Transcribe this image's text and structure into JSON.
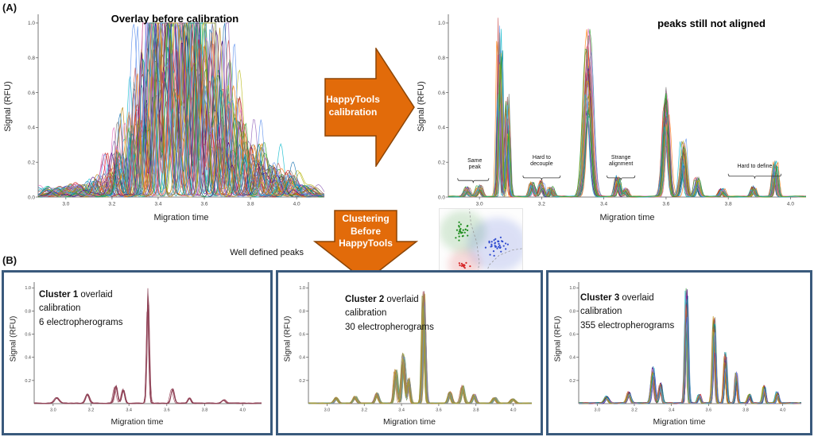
{
  "figure": {
    "panel_a_label": "(A)",
    "panel_b_label": "(B)",
    "well_defined_peaks_label": "Well defined peaks",
    "arrow_right": {
      "line1": "HappyTools",
      "line2": "calibration"
    },
    "arrow_down": {
      "line1": "Clustering",
      "line2": "Before",
      "line3": "HappyTools"
    },
    "colors": {
      "arrow_fill": "#E26B0A",
      "arrow_stroke": "#8C4506",
      "box_border": "#3A5A7C",
      "axis": "#555555"
    },
    "palette": [
      "#1f77b4",
      "#ff7f0e",
      "#d62728",
      "#9467bd",
      "#8c564b",
      "#e377c2",
      "#7f7f7f",
      "#bcbd22",
      "#17becf",
      "#2ca02c",
      "#4b0082",
      "#008b8b",
      "#b8860b",
      "#cd5c5c",
      "#6495ed"
    ]
  },
  "chart_data": [
    {
      "id": "before",
      "type": "line",
      "title": "Overlay before calibration",
      "xlabel": "Migration time",
      "ylabel": "Signal (RFU)",
      "xlim": [
        2.88,
        4.12
      ],
      "ylim": [
        0,
        1.05
      ],
      "xticks": [
        3.0,
        3.2,
        3.4,
        3.6,
        3.8,
        4.0
      ],
      "yticks": [
        0,
        0.2,
        0.4,
        0.6,
        0.8,
        1.0
      ],
      "n_traces": 45,
      "seed": 7,
      "shift": 0.035,
      "peak_jitter": 0.045,
      "hmin": 0.35,
      "clip": 1.0,
      "noise": 0.018,
      "colors": "palette",
      "peaks": [
        {
          "x": 2.95,
          "h": 0.05,
          "w": 0.02
        },
        {
          "x": 3.05,
          "h": 0.07,
          "w": 0.02
        },
        {
          "x": 3.15,
          "h": 0.12,
          "w": 0.015
        },
        {
          "x": 3.22,
          "h": 0.28,
          "w": 0.012
        },
        {
          "x": 3.28,
          "h": 0.5,
          "w": 0.01
        },
        {
          "x": 3.35,
          "h": 0.9,
          "w": 0.012
        },
        {
          "x": 3.4,
          "h": 1.3,
          "w": 0.013
        },
        {
          "x": 3.45,
          "h": 1.3,
          "w": 0.013
        },
        {
          "x": 3.5,
          "h": 1.3,
          "w": 0.013
        },
        {
          "x": 3.55,
          "h": 1.2,
          "w": 0.013
        },
        {
          "x": 3.6,
          "h": 1.0,
          "w": 0.013
        },
        {
          "x": 3.65,
          "h": 0.75,
          "w": 0.012
        },
        {
          "x": 3.7,
          "h": 0.55,
          "w": 0.012
        },
        {
          "x": 3.76,
          "h": 0.45,
          "w": 0.012
        },
        {
          "x": 3.82,
          "h": 0.3,
          "w": 0.013
        },
        {
          "x": 3.88,
          "h": 0.2,
          "w": 0.014
        },
        {
          "x": 3.95,
          "h": 0.14,
          "w": 0.015
        },
        {
          "x": 4.02,
          "h": 0.07,
          "w": 0.02
        }
      ]
    },
    {
      "id": "after",
      "type": "line",
      "title": "peaks still not aligned",
      "xlabel": "Migration time",
      "ylabel": "Signal (RFU)",
      "xlim": [
        2.9,
        4.05
      ],
      "ylim": [
        0,
        1.05
      ],
      "xticks": [
        3.0,
        3.2,
        3.4,
        3.6,
        3.8,
        4.0
      ],
      "yticks": [
        0,
        0.2,
        0.4,
        0.6,
        0.8,
        1.0
      ],
      "n_traces": 40,
      "seed": 11,
      "shift": 0.005,
      "peak_jitter": 0.004,
      "hmin": 0.45,
      "clip": 1.03,
      "noise": 0.006,
      "colors": "palette",
      "peaks": [
        {
          "x": 2.96,
          "h": 0.06,
          "w": 0.006
        },
        {
          "x": 3.0,
          "h": 0.07,
          "w": 0.006
        },
        {
          "x": 3.065,
          "h": 1.05,
          "w": 0.0045
        },
        {
          "x": 3.09,
          "h": 0.6,
          "w": 0.0045
        },
        {
          "x": 3.17,
          "h": 0.09,
          "w": 0.006
        },
        {
          "x": 3.2,
          "h": 0.1,
          "w": 0.006
        },
        {
          "x": 3.23,
          "h": 0.06,
          "w": 0.005
        },
        {
          "x": 3.35,
          "h": 0.98,
          "w": 0.011
        },
        {
          "x": 3.445,
          "h": 0.12,
          "w": 0.005
        },
        {
          "x": 3.47,
          "h": 0.05,
          "w": 0.005
        },
        {
          "x": 3.6,
          "h": 0.64,
          "w": 0.008
        },
        {
          "x": 3.655,
          "h": 0.35,
          "w": 0.007
        },
        {
          "x": 3.7,
          "h": 0.12,
          "w": 0.006
        },
        {
          "x": 3.78,
          "h": 0.05,
          "w": 0.006
        },
        {
          "x": 3.88,
          "h": 0.06,
          "w": 0.005
        },
        {
          "x": 3.95,
          "h": 0.22,
          "w": 0.005
        }
      ],
      "annotations": [
        {
          "lines": [
            "Same",
            "peak"
          ],
          "x": 2.985,
          "text_y": 0.2,
          "brace_y": 0.095,
          "span": [
            2.93,
            3.03
          ]
        },
        {
          "lines": [
            "Hard to",
            "decouple"
          ],
          "x": 3.2,
          "text_y": 0.22,
          "brace_y": 0.11,
          "span": [
            3.14,
            3.26
          ]
        },
        {
          "lines": [
            "Strange",
            "alignment"
          ],
          "x": 3.455,
          "text_y": 0.22,
          "brace_y": 0.11,
          "span": [
            3.41,
            3.5
          ]
        },
        {
          "lines": [
            "Hard to define"
          ],
          "x": 3.885,
          "text_y": 0.17,
          "brace_y": 0.12,
          "span": [
            3.8,
            3.97
          ]
        }
      ]
    },
    {
      "id": "c1",
      "type": "line",
      "label_bold": "Cluster 1",
      "label_rest": " overlaid",
      "label_line2": "calibration",
      "label_line3": "6 electropherograms",
      "xlabel": "Migration time",
      "ylabel": "Signal (RFU)",
      "xlim": [
        2.9,
        4.1
      ],
      "ylim": [
        0,
        1.05
      ],
      "xticks": [
        3.0,
        3.2,
        3.4,
        3.6,
        3.8,
        4.0
      ],
      "yticks": [
        0.2,
        0.4,
        0.6,
        0.8,
        1.0
      ],
      "n_traces": 6,
      "seed": 3,
      "shift": 0.004,
      "peak_jitter": 0.003,
      "hmin": 0.85,
      "clip": 1.05,
      "noise": 0.008,
      "colors": [
        "#9c4a5e",
        "#8a3d52",
        "#a85568",
        "#7e3348"
      ],
      "peaks": [
        {
          "x": 3.02,
          "h": 0.05,
          "w": 0.012
        },
        {
          "x": 3.18,
          "h": 0.08,
          "w": 0.01
        },
        {
          "x": 3.33,
          "h": 0.16,
          "w": 0.008
        },
        {
          "x": 3.37,
          "h": 0.12,
          "w": 0.008
        },
        {
          "x": 3.5,
          "h": 1.0,
          "w": 0.0065
        },
        {
          "x": 3.63,
          "h": 0.13,
          "w": 0.008
        },
        {
          "x": 3.72,
          "h": 0.05,
          "w": 0.008
        },
        {
          "x": 3.9,
          "h": 0.03,
          "w": 0.01
        }
      ]
    },
    {
      "id": "c2",
      "type": "line",
      "label_bold": "Cluster 2",
      "label_rest": " overlaid",
      "label_line2": "calibration",
      "label_line3": "30 electropherograms",
      "xlabel": "Migration time",
      "ylabel": "Signal (RFU)",
      "xlim": [
        2.9,
        4.1
      ],
      "ylim": [
        0,
        1.05
      ],
      "xticks": [
        3.0,
        3.2,
        3.4,
        3.6,
        3.8,
        4.0
      ],
      "yticks": [
        0.2,
        0.4,
        0.6,
        0.8,
        1.0
      ],
      "n_traces": 30,
      "seed": 5,
      "shift": 0.005,
      "peak_jitter": 0.004,
      "hmin": 0.7,
      "clip": 1.05,
      "noise": 0.008,
      "colors": [
        "#b8a23a",
        "#8f9a3d",
        "#c27c3a",
        "#7d7db8",
        "#b05a5a",
        "#6aa0a0",
        "#9a8f4a"
      ],
      "peaks": [
        {
          "x": 3.05,
          "h": 0.05,
          "w": 0.01
        },
        {
          "x": 3.15,
          "h": 0.06,
          "w": 0.01
        },
        {
          "x": 3.27,
          "h": 0.09,
          "w": 0.009
        },
        {
          "x": 3.37,
          "h": 0.3,
          "w": 0.008
        },
        {
          "x": 3.41,
          "h": 0.45,
          "w": 0.008
        },
        {
          "x": 3.44,
          "h": 0.22,
          "w": 0.007
        },
        {
          "x": 3.52,
          "h": 1.0,
          "w": 0.007
        },
        {
          "x": 3.66,
          "h": 0.1,
          "w": 0.008
        },
        {
          "x": 3.73,
          "h": 0.16,
          "w": 0.008
        },
        {
          "x": 3.79,
          "h": 0.08,
          "w": 0.008
        },
        {
          "x": 3.9,
          "h": 0.05,
          "w": 0.009
        },
        {
          "x": 4.0,
          "h": 0.04,
          "w": 0.01
        }
      ]
    },
    {
      "id": "c3",
      "type": "line",
      "label_bold": "Cluster 3",
      "label_rest": " overlaid",
      "label_line2": "calibration",
      "label_line3": "355 electropherograms",
      "xlabel": "Migration time",
      "ylabel": "Signal (RFU)",
      "xlim": [
        2.9,
        4.1
      ],
      "ylim": [
        0,
        1.05
      ],
      "xticks": [
        3.0,
        3.2,
        3.4,
        3.6,
        3.8,
        4.0
      ],
      "yticks": [
        0.2,
        0.4,
        0.6,
        0.8,
        1.0
      ],
      "n_traces": 355,
      "max_draw": 60,
      "seed": 9,
      "shift": 0.004,
      "peak_jitter": 0.003,
      "hmin": 0.6,
      "clip": 1.05,
      "noise": 0.01,
      "colors": "palette",
      "peaks": [
        {
          "x": 3.05,
          "h": 0.06,
          "w": 0.01
        },
        {
          "x": 3.17,
          "h": 0.1,
          "w": 0.009
        },
        {
          "x": 3.3,
          "h": 0.32,
          "w": 0.008
        },
        {
          "x": 3.34,
          "h": 0.18,
          "w": 0.008
        },
        {
          "x": 3.48,
          "h": 1.02,
          "w": 0.006
        },
        {
          "x": 3.55,
          "h": 0.08,
          "w": 0.007
        },
        {
          "x": 3.63,
          "h": 0.75,
          "w": 0.0065
        },
        {
          "x": 3.69,
          "h": 0.45,
          "w": 0.006
        },
        {
          "x": 3.75,
          "h": 0.28,
          "w": 0.006
        },
        {
          "x": 3.82,
          "h": 0.08,
          "w": 0.007
        },
        {
          "x": 3.9,
          "h": 0.16,
          "w": 0.006
        },
        {
          "x": 3.97,
          "h": 0.1,
          "w": 0.007
        }
      ]
    },
    {
      "id": "scatter",
      "type": "scatter",
      "seed": 13,
      "clusters": [
        {
          "name": "green-cluster",
          "color": "#1e8c1e",
          "cx": 0.28,
          "cy": 0.3,
          "spread": 0.1,
          "n": 26
        },
        {
          "name": "blue-cluster",
          "color": "#2f4bd0",
          "cx": 0.7,
          "cy": 0.48,
          "spread": 0.13,
          "n": 34
        },
        {
          "name": "red-cluster",
          "color": "#d62728",
          "cx": 0.3,
          "cy": 0.74,
          "spread": 0.07,
          "n": 13
        }
      ],
      "boundaries": [
        [
          [
            0.44,
            1.0
          ],
          [
            0.48,
            0.72
          ],
          [
            0.45,
            0.45
          ],
          [
            0.38,
            0.2
          ],
          [
            0.36,
            0.0
          ]
        ],
        [
          [
            0.52,
            1.0
          ],
          [
            0.6,
            0.75
          ],
          [
            0.72,
            0.62
          ],
          [
            0.88,
            0.55
          ],
          [
            1.0,
            0.53
          ]
        ]
      ]
    }
  ]
}
